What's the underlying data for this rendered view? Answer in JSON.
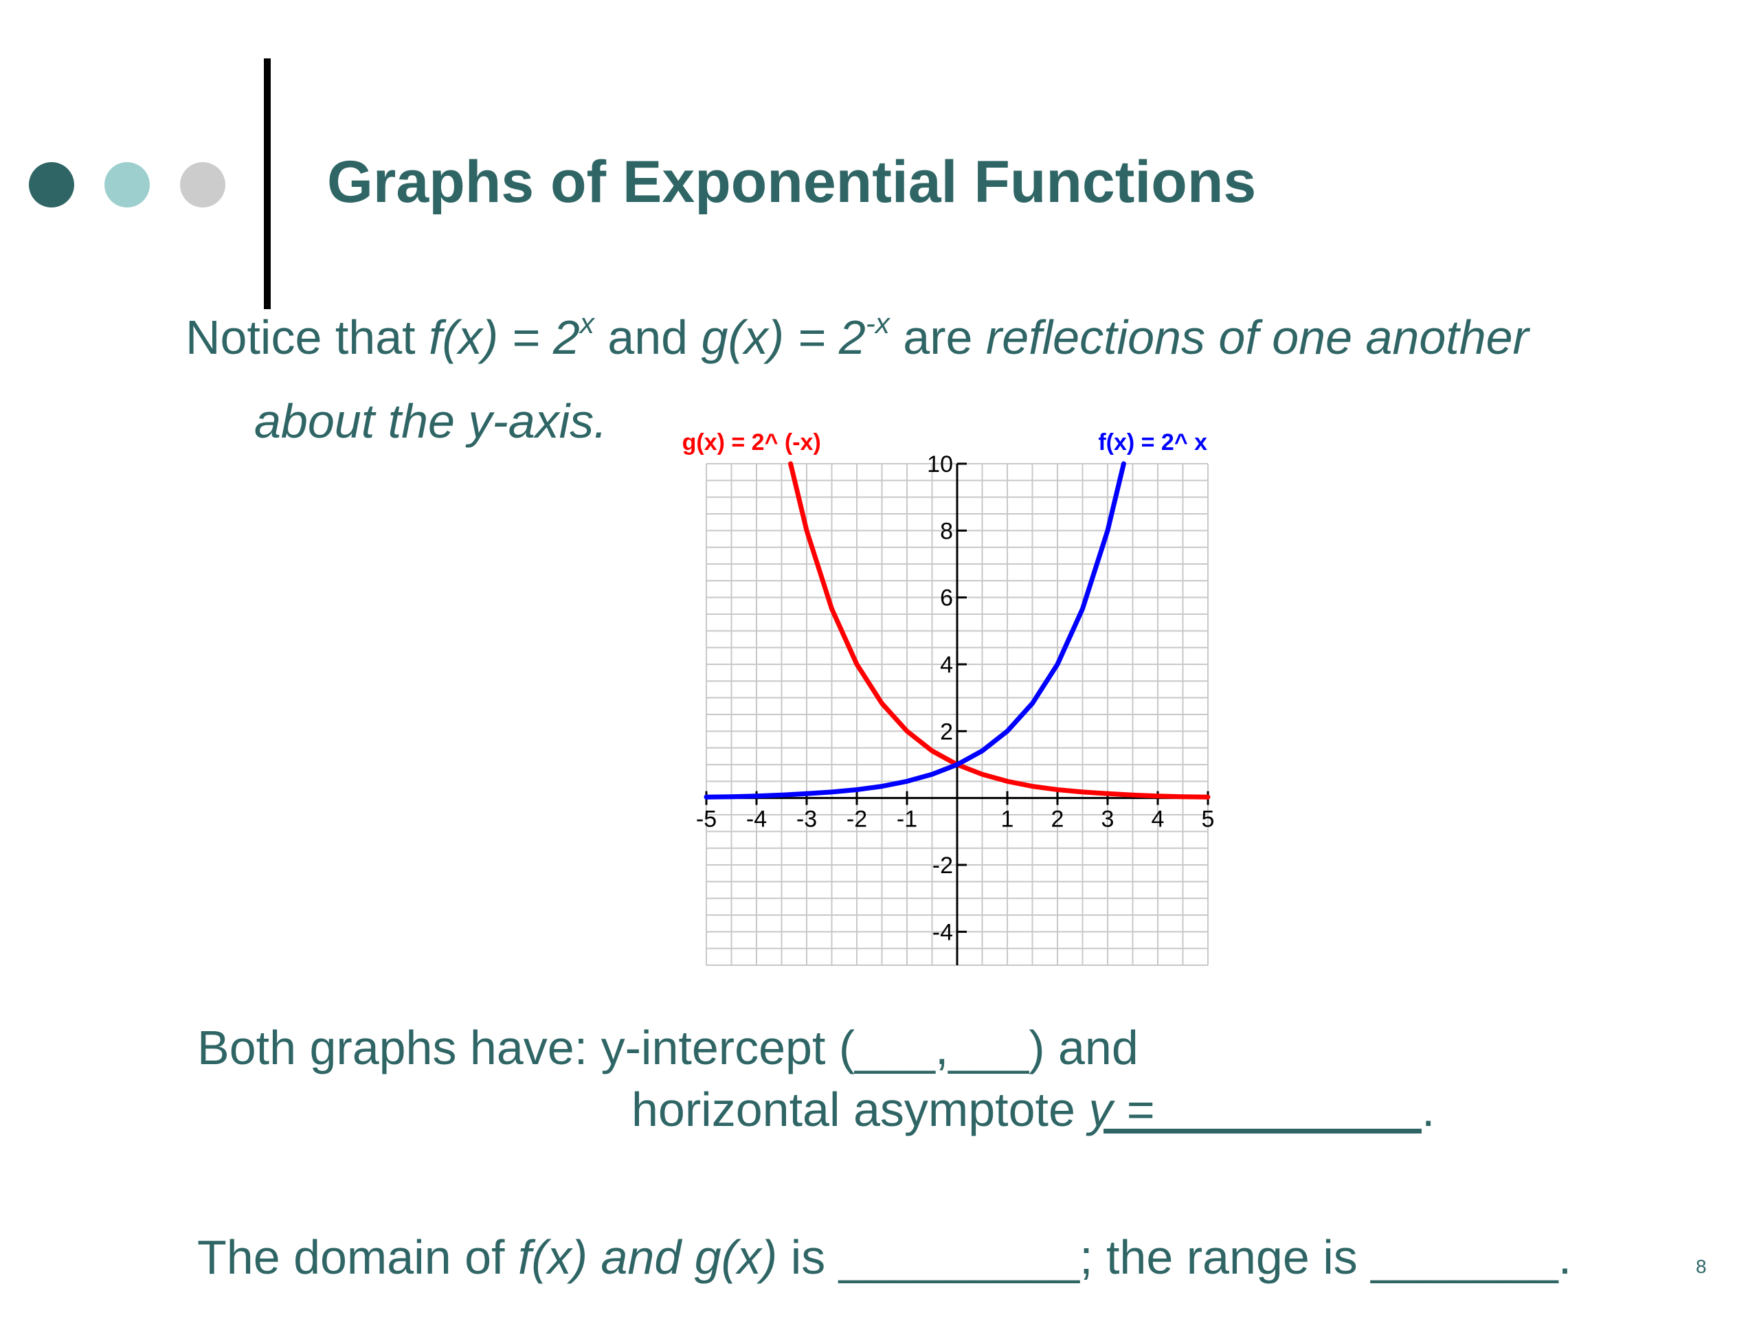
{
  "colors": {
    "text": "#2f6565",
    "dot_dark": "#2f6565",
    "dot_light": "#9ecfcf",
    "dot_grey": "#cccccc",
    "f_curve": "#0000ff",
    "g_curve": "#ff0000"
  },
  "slide": {
    "title": "Graphs of Exponential Functions",
    "intro": {
      "t1": "Notice that ",
      "f": "f(x) = 2",
      "f_exp": "x",
      "t2": " and ",
      "g": "g(x) = 2",
      "g_exp": "-x",
      "t3": " are ",
      "emph": "reflections of one another",
      "line2": "about the y-axis."
    },
    "both": {
      "lead": "Both graphs have:  y-intercept (",
      "blank_a": "___",
      "comma": ",",
      "blank_b": "___",
      "close": ") and",
      "line2_pre": "horizontal asymptote ",
      "y_blank": "y =__________",
      "period": "."
    },
    "domain": {
      "t1": "The domain of ",
      "fg": "f(x) and g(x)",
      "t2": " is _________; the range is _______."
    },
    "slide_number": "8"
  },
  "chart_data": {
    "type": "line",
    "xlim": [
      -5,
      5
    ],
    "ylim": [
      -5,
      10
    ],
    "grid": true,
    "x_ticks": [
      "-5",
      "-4",
      "-3",
      "-2",
      "-1",
      "1",
      "2",
      "3",
      "4",
      "5"
    ],
    "y_ticks": [
      "10",
      "8",
      "6",
      "4",
      "2",
      "-2",
      "-4"
    ],
    "series": [
      {
        "name": "g(x) = 2^ (-x)",
        "color": "#ff0000",
        "x": [
          -3.32,
          -3,
          -2.5,
          -2,
          -1.5,
          -1,
          -0.5,
          0,
          0.5,
          1,
          1.5,
          2,
          2.5,
          3,
          3.5,
          4,
          4.5,
          5
        ],
        "y": [
          10,
          8,
          5.66,
          4,
          2.83,
          2,
          1.41,
          1,
          0.71,
          0.5,
          0.35,
          0.25,
          0.18,
          0.13,
          0.09,
          0.06,
          0.04,
          0.03
        ]
      },
      {
        "name": "f(x) = 2^ x",
        "color": "#0000ff",
        "x": [
          -5,
          -4.5,
          -4,
          -3.5,
          -3,
          -2.5,
          -2,
          -1.5,
          -1,
          -0.5,
          0,
          0.5,
          1,
          1.5,
          2,
          2.5,
          3,
          3.32
        ],
        "y": [
          0.03,
          0.04,
          0.06,
          0.09,
          0.13,
          0.18,
          0.25,
          0.35,
          0.5,
          0.71,
          1,
          1.41,
          2,
          2.83,
          4,
          5.66,
          8,
          10
        ]
      }
    ]
  }
}
